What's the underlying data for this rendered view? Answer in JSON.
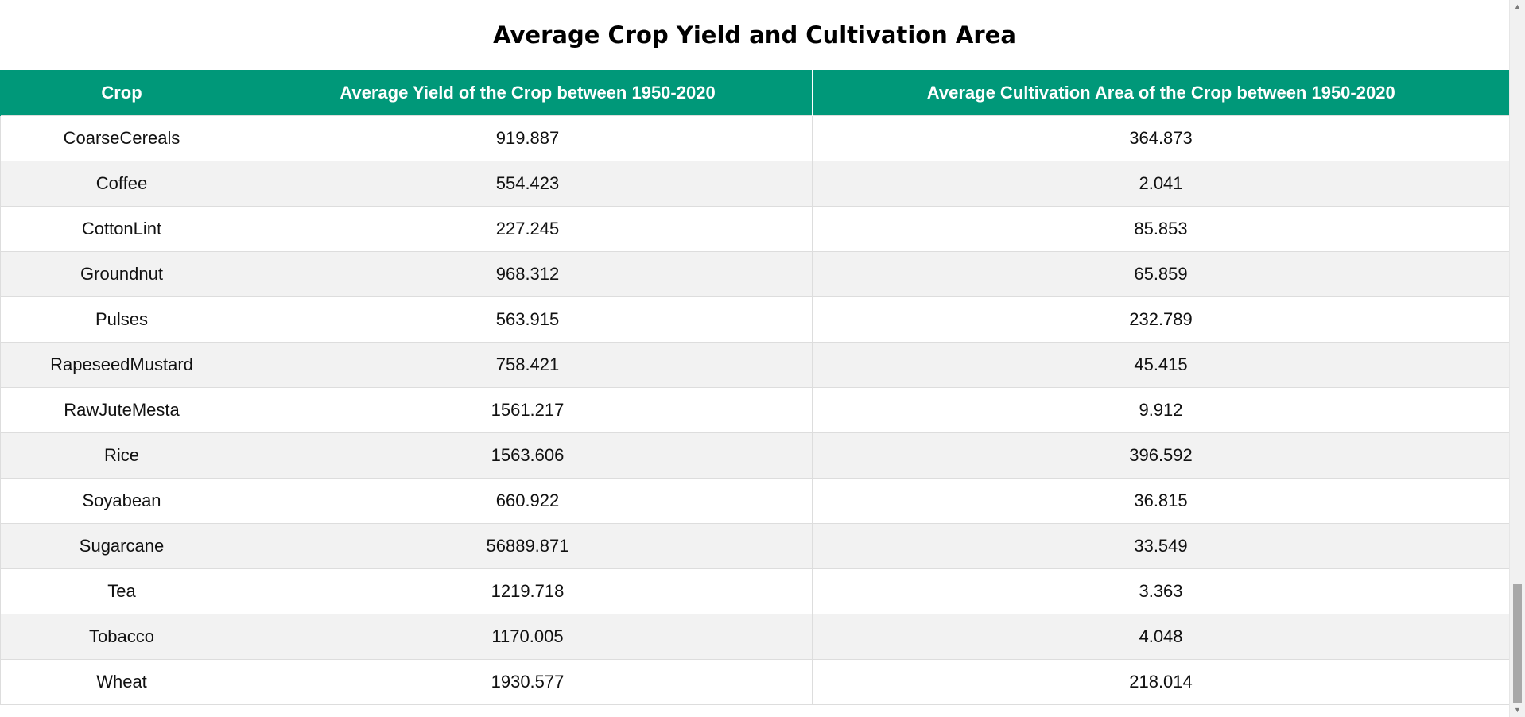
{
  "page": {
    "title": "Average Crop Yield and Cultivation Area"
  },
  "table": {
    "headers": [
      "Crop",
      "Average Yield of the Crop between 1950-2020",
      "Average Cultivation Area of the Crop between 1950-2020"
    ],
    "rows": [
      {
        "crop": "CoarseCereals",
        "yield": "919.887",
        "area": "364.873"
      },
      {
        "crop": "Coffee",
        "yield": "554.423",
        "area": "2.041"
      },
      {
        "crop": "CottonLint",
        "yield": "227.245",
        "area": "85.853"
      },
      {
        "crop": "Groundnut",
        "yield": "968.312",
        "area": "65.859"
      },
      {
        "crop": "Pulses",
        "yield": "563.915",
        "area": "232.789"
      },
      {
        "crop": "RapeseedMustard",
        "yield": "758.421",
        "area": "45.415"
      },
      {
        "crop": "RawJuteMesta",
        "yield": "1561.217",
        "area": "9.912"
      },
      {
        "crop": "Rice",
        "yield": "1563.606",
        "area": "396.592"
      },
      {
        "crop": "Soyabean",
        "yield": "660.922",
        "area": "36.815"
      },
      {
        "crop": "Sugarcane",
        "yield": "56889.871",
        "area": "33.549"
      },
      {
        "crop": "Tea",
        "yield": "1219.718",
        "area": "3.363"
      },
      {
        "crop": "Tobacco",
        "yield": "1170.005",
        "area": "4.048"
      },
      {
        "crop": "Wheat",
        "yield": "1930.577",
        "area": "218.014"
      }
    ]
  },
  "scrollbar": {
    "up_icon": "scroll-up-arrow-icon",
    "down_icon": "scroll-down-arrow-icon"
  },
  "colors": {
    "header_bg": "#009879",
    "header_text": "#ffffff",
    "row_alt_bg": "#f2f2f2"
  }
}
